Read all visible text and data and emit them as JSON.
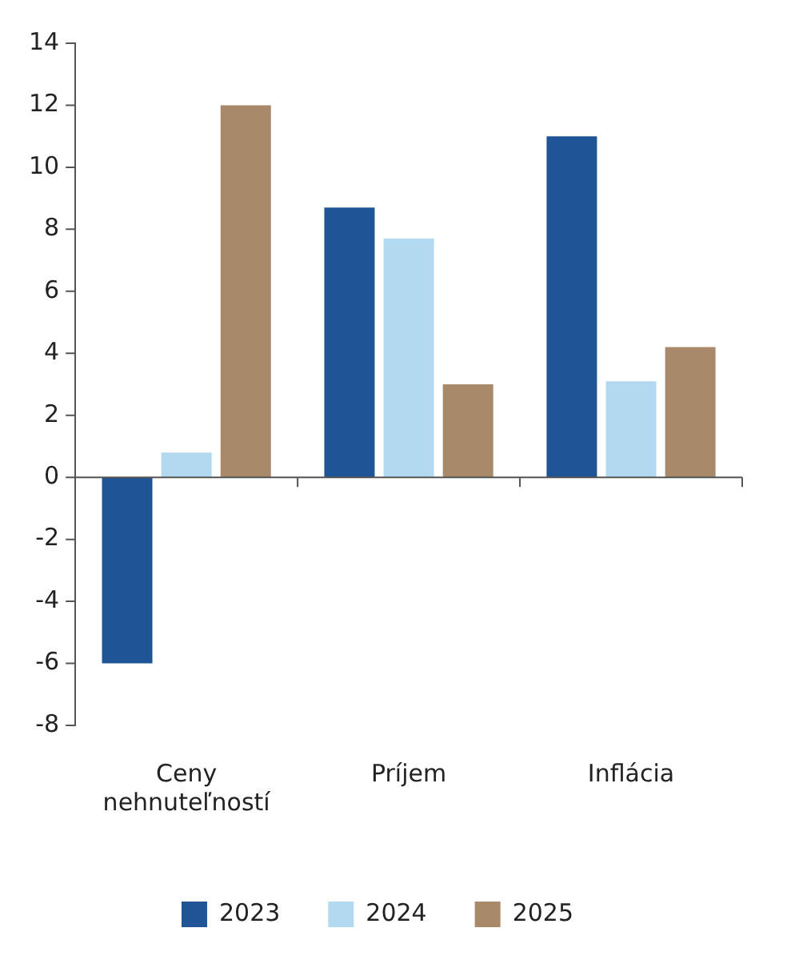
{
  "chart_data": {
    "type": "bar",
    "categories": [
      "Ceny nehnuteľností",
      "Príjem",
      "Inflácia"
    ],
    "series": [
      {
        "name": "2023",
        "color": "#1f5596",
        "values": [
          -6,
          8.7,
          11
        ]
      },
      {
        "name": "2024",
        "color": "#b3d9f0",
        "values": [
          0.8,
          7.7,
          3.1
        ]
      },
      {
        "name": "2025",
        "color": "#a88a6a",
        "values": [
          12,
          3,
          4.2
        ]
      }
    ],
    "ylim": [
      -8,
      14
    ],
    "yticks": [
      -8,
      -6,
      -4,
      -2,
      0,
      2,
      4,
      6,
      8,
      10,
      12,
      14
    ],
    "legend": "bottom"
  }
}
